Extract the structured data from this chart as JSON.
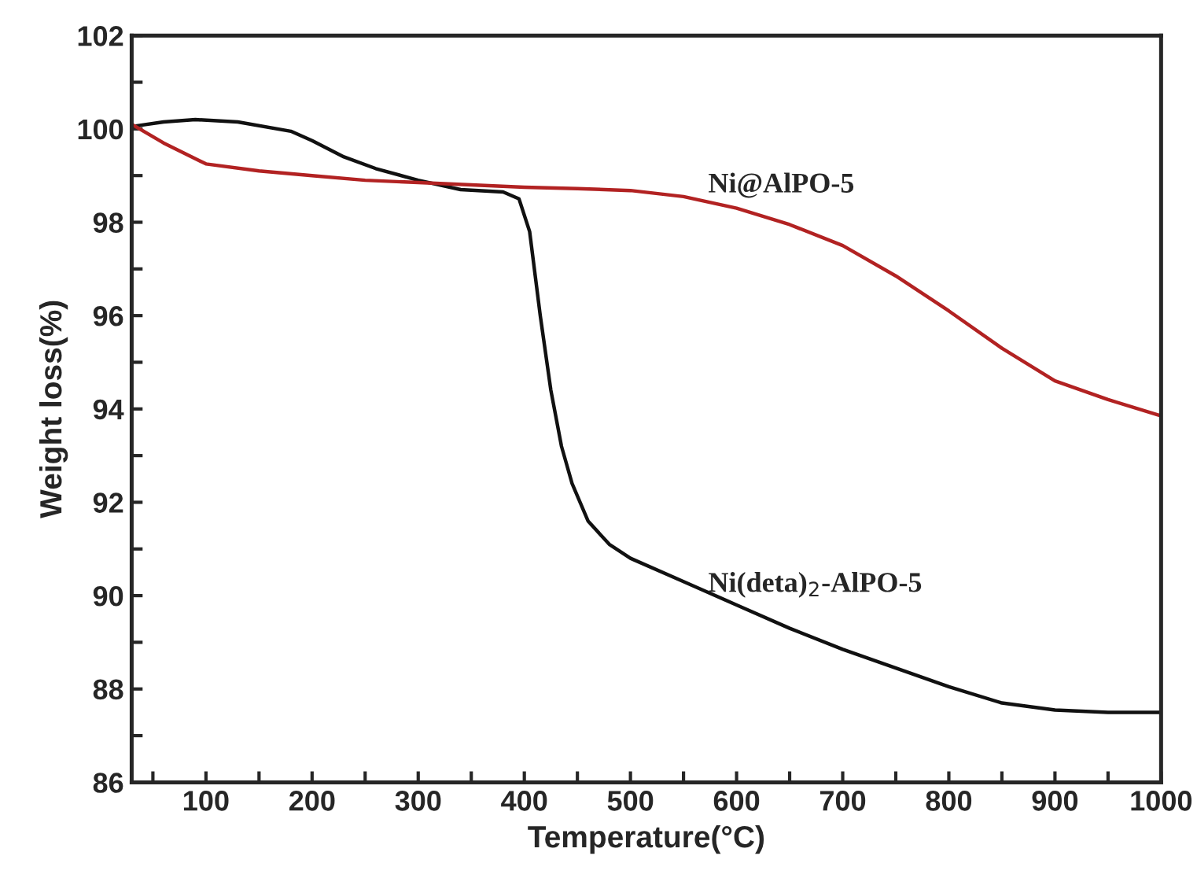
{
  "chart_data": {
    "type": "line",
    "xlabel": "Temperature(°C)",
    "ylabel": "Weight loss(%)",
    "xlim": [
      30,
      1000
    ],
    "ylim": [
      86,
      102
    ],
    "xticks": [
      {
        "value": 50,
        "label": null
      },
      100,
      {
        "value": 150,
        "label": null
      },
      200,
      {
        "value": 250,
        "label": null
      },
      300,
      {
        "value": 350,
        "label": null
      },
      400,
      {
        "value": 450,
        "label": null
      },
      500,
      {
        "value": 550,
        "label": null
      },
      600,
      {
        "value": 650,
        "label": null
      },
      700,
      {
        "value": 750,
        "label": null
      },
      800,
      {
        "value": 850,
        "label": null
      },
      900,
      {
        "value": 950,
        "label": null
      },
      1000
    ],
    "yticks": [
      86,
      {
        "value": 87,
        "label": null
      },
      88,
      {
        "value": 89,
        "label": null
      },
      90,
      {
        "value": 91,
        "label": null
      },
      92,
      {
        "value": 93,
        "label": null
      },
      94,
      {
        "value": 95,
        "label": null
      },
      96,
      {
        "value": 97,
        "label": null
      },
      98,
      {
        "value": 99,
        "label": null
      },
      100,
      {
        "value": 101,
        "label": null
      },
      102
    ],
    "grid": false,
    "marker": "none",
    "line_style": "solid",
    "series": [
      {
        "color": "#111111",
        "x": [
          30,
          60,
          90,
          130,
          180,
          200,
          230,
          260,
          300,
          340,
          380,
          395,
          405,
          415,
          425,
          435,
          445,
          460,
          480,
          500,
          550,
          600,
          650,
          700,
          750,
          800,
          850,
          900,
          950,
          1000
        ],
        "values": [
          100.05,
          100.15,
          100.2,
          100.15,
          99.95,
          99.75,
          99.4,
          99.15,
          98.9,
          98.7,
          98.65,
          98.5,
          97.8,
          96.0,
          94.4,
          93.2,
          92.4,
          91.6,
          91.1,
          90.8,
          90.3,
          89.8,
          89.3,
          88.85,
          88.45,
          88.05,
          87.7,
          87.55,
          87.5,
          87.5
        ]
      },
      {
        "color": "#b22222",
        "x": [
          30,
          60,
          100,
          150,
          200,
          250,
          300,
          350,
          400,
          450,
          500,
          550,
          600,
          650,
          700,
          750,
          800,
          850,
          900,
          950,
          1000
        ],
        "values": [
          100.1,
          99.7,
          99.25,
          99.1,
          99.0,
          98.9,
          98.85,
          98.8,
          98.75,
          98.72,
          98.68,
          98.55,
          98.3,
          97.95,
          97.5,
          96.85,
          96.1,
          95.3,
          94.6,
          94.2,
          93.85
        ]
      }
    ],
    "annotations": [
      "Ni@AlPO-5",
      "Ni(deta)$_{2}$-AlPO-5"
    ]
  }
}
